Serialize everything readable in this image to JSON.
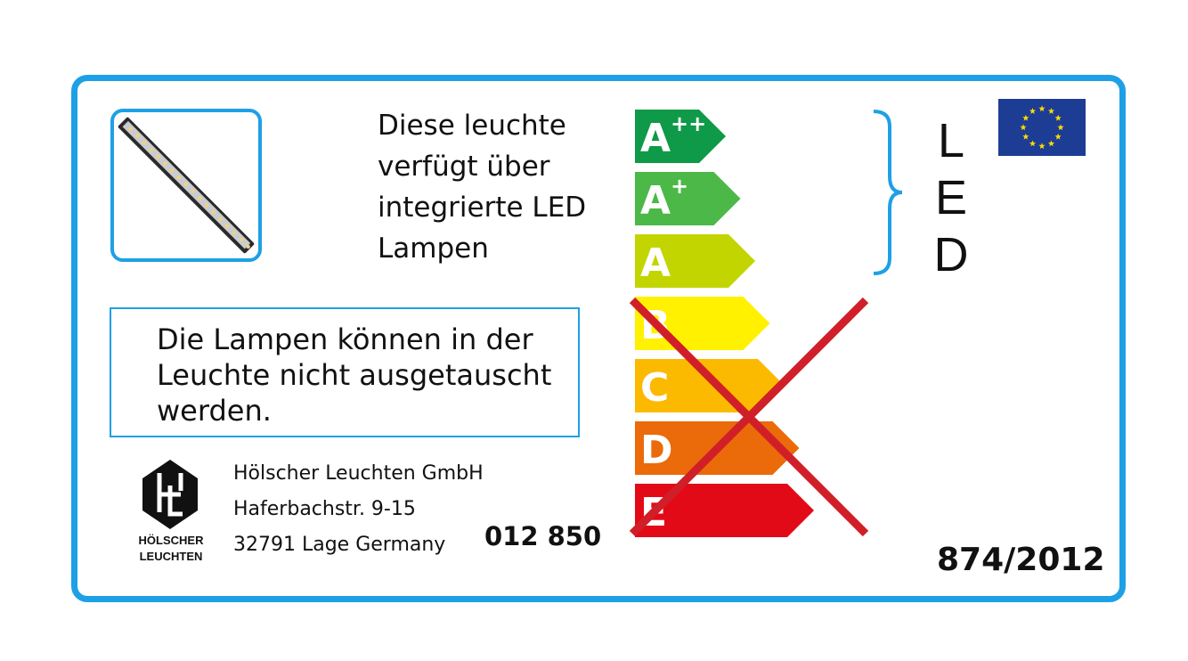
{
  "intro_text": [
    "Diese leuchte",
    "verfügt über",
    "integrierte LED",
    "Lampen"
  ],
  "notice_text": "Die Lampen können in der Leuchte nicht ausgetauscht werden.",
  "manufacturer": {
    "logo_text": [
      "HÖLSCHER",
      "LEUCHTEN"
    ],
    "address": [
      "Hölscher Leuchten GmbH",
      "Haferbachstr. 9-15",
      "32791 Lage Germany"
    ]
  },
  "product_code": "012 850",
  "regulation": "874/2012",
  "led_letters": [
    "L",
    "E",
    "D"
  ],
  "energy_classes": [
    {
      "label": "A",
      "sup": "++",
      "color": "#0e9a48"
    },
    {
      "label": "A",
      "sup": "+",
      "color": "#4cb848"
    },
    {
      "label": "A",
      "sup": "",
      "color": "#c3d500"
    },
    {
      "label": "B",
      "sup": "",
      "color": "#fff100"
    },
    {
      "label": "C",
      "sup": "",
      "color": "#fbba00"
    },
    {
      "label": "D",
      "sup": "",
      "color": "#eb6a0a"
    },
    {
      "label": "E",
      "sup": "",
      "color": "#e30a17"
    }
  ],
  "cross_color": "#d01f28",
  "frame_color": "#1ea0e6",
  "icons": {
    "photo": "led-strip-photo",
    "flag": "eu-flag",
    "brace": "curly-brace"
  }
}
